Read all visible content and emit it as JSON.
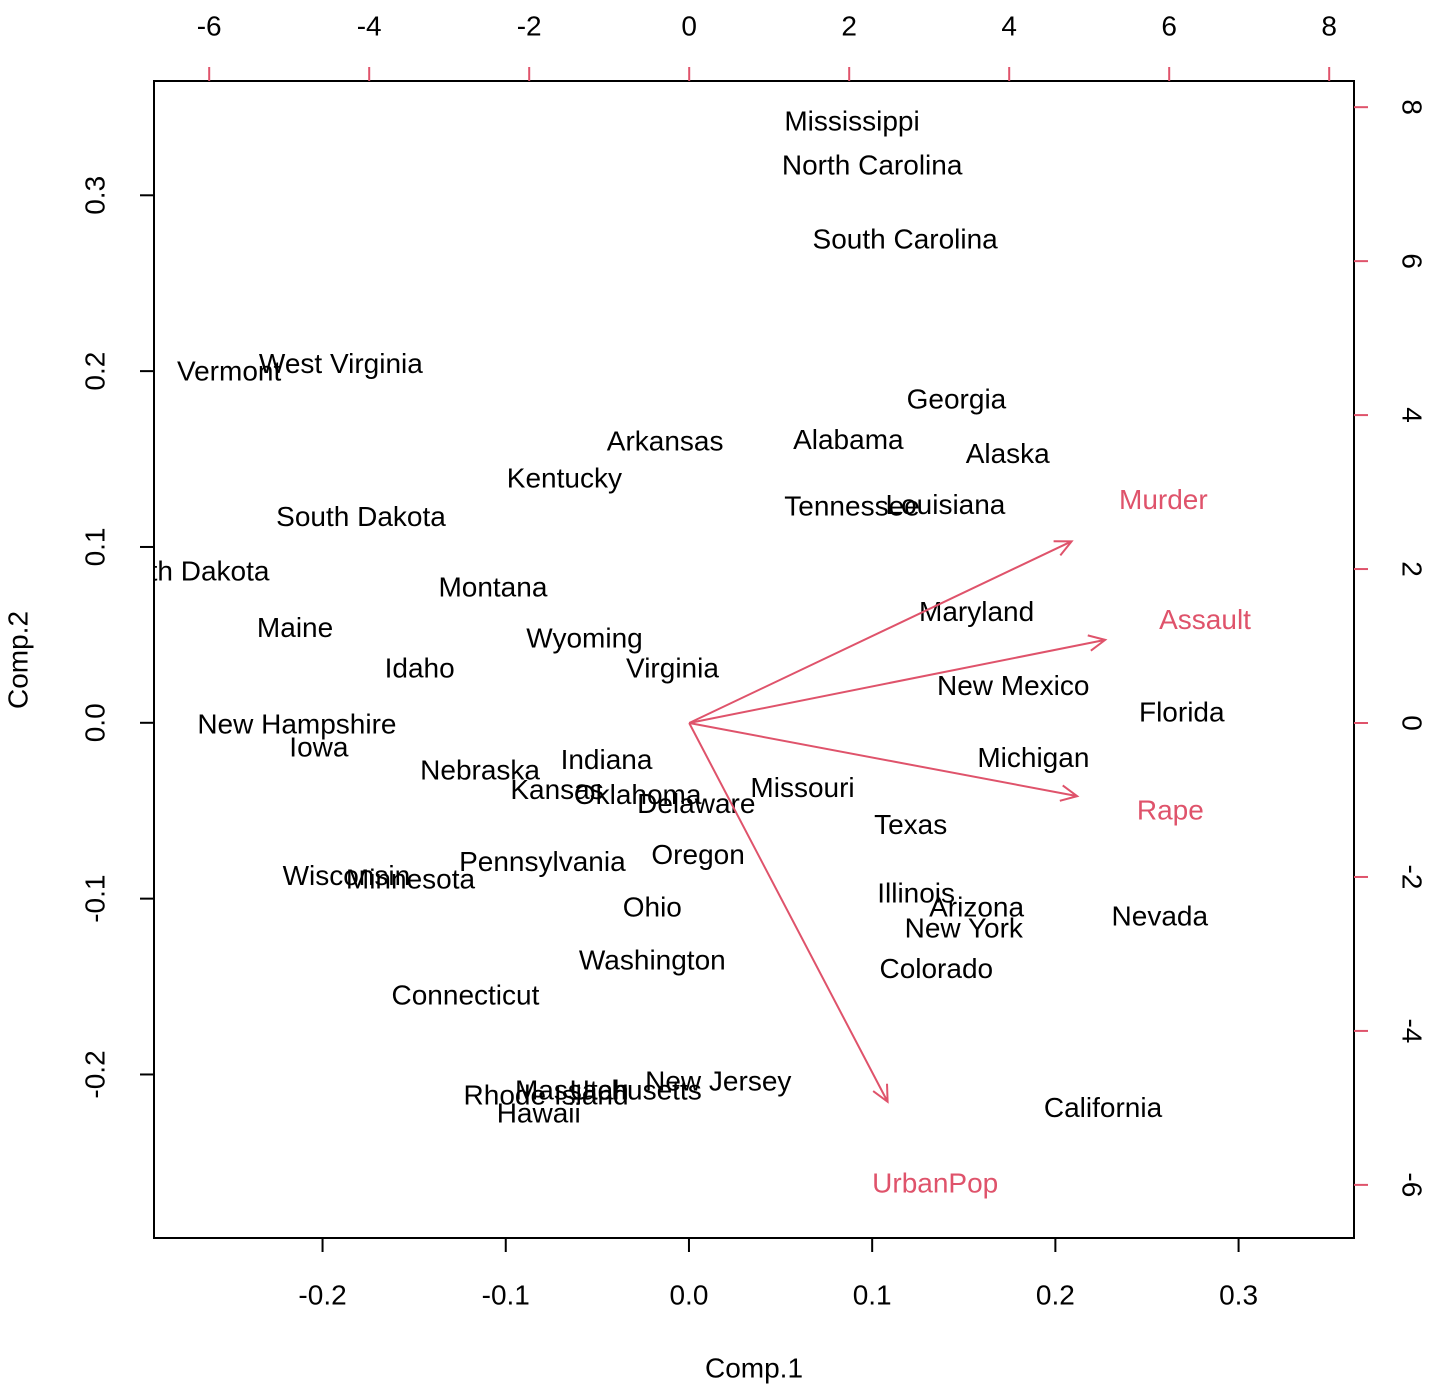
{
  "chart_data": {
    "type": "biplot",
    "x_label": "Comp.1",
    "y_label": "Comp.2",
    "xlim": [
      -0.292,
      0.363
    ],
    "ylim": [
      -0.293,
      0.365
    ],
    "xticks": [
      -0.2,
      -0.1,
      {
        "value": 0,
        "label": "0.0"
      },
      0.1,
      0.2,
      0.3
    ],
    "yticks": [
      -0.2,
      -0.1,
      {
        "value": 0,
        "label": "0.0"
      },
      0.1,
      0.2,
      0.3
    ],
    "x2lim": [
      -6.69,
      8.31
    ],
    "y2lim": [
      -6.69,
      8.34
    ],
    "x2ticks": [
      -6,
      -4,
      -2,
      0,
      2,
      4,
      6,
      8
    ],
    "y2ticks": [
      -6,
      -4,
      -2,
      0,
      2,
      4,
      6,
      8
    ],
    "point_color": "#000000",
    "arrow_color": "#DF536B",
    "points": [
      {
        "label": "Mississippi",
        "x": 0.089,
        "y": 0.341
      },
      {
        "label": "North Carolina",
        "x": 0.1,
        "y": 0.316
      },
      {
        "label": "South Carolina",
        "x": 0.118,
        "y": 0.274
      },
      {
        "label": "Vermont",
        "x": -0.251,
        "y": 0.199
      },
      {
        "label": "West Virginia",
        "x": -0.19,
        "y": 0.203
      },
      {
        "label": "Georgia",
        "x": 0.146,
        "y": 0.183
      },
      {
        "label": "Arkansas",
        "x": -0.013,
        "y": 0.159
      },
      {
        "label": "Alabama",
        "x": 0.087,
        "y": 0.16
      },
      {
        "label": "Alaska",
        "x": 0.174,
        "y": 0.152
      },
      {
        "label": "Kentucky",
        "x": -0.068,
        "y": 0.138
      },
      {
        "label": "Tennessee",
        "x": 0.089,
        "y": 0.122
      },
      {
        "label": "Louisiana",
        "x": 0.14,
        "y": 0.123
      },
      {
        "label": "South Dakota",
        "x": -0.179,
        "y": 0.116
      },
      {
        "label": "North Dakota",
        "x": -0.274,
        "y": 0.085
      },
      {
        "label": "Montana",
        "x": -0.107,
        "y": 0.076
      },
      {
        "label": "Maryland",
        "x": 0.157,
        "y": 0.062
      },
      {
        "label": "Maine",
        "x": -0.215,
        "y": 0.053
      },
      {
        "label": "Wyoming",
        "x": -0.057,
        "y": 0.047
      },
      {
        "label": "Idaho",
        "x": -0.147,
        "y": 0.03
      },
      {
        "label": "Virginia",
        "x": -0.009,
        "y": 0.03
      },
      {
        "label": "New Mexico",
        "x": 0.177,
        "y": 0.02
      },
      {
        "label": "Florida",
        "x": 0.269,
        "y": 0.005
      },
      {
        "label": "New Hampshire",
        "x": -0.214,
        "y": -0.002
      },
      {
        "label": "Iowa",
        "x": -0.202,
        "y": -0.015
      },
      {
        "label": "Michigan",
        "x": 0.188,
        "y": -0.021
      },
      {
        "label": "Indiana",
        "x": -0.045,
        "y": -0.022
      },
      {
        "label": "Nebraska",
        "x": -0.114,
        "y": -0.028
      },
      {
        "label": "Missouri",
        "x": 0.062,
        "y": -0.038
      },
      {
        "label": "Kansas",
        "x": -0.072,
        "y": -0.039
      },
      {
        "label": "Oklahoma",
        "x": -0.028,
        "y": -0.042
      },
      {
        "label": "Delaware",
        "x": 0.004,
        "y": -0.047
      },
      {
        "label": "Texas",
        "x": 0.121,
        "y": -0.059
      },
      {
        "label": "Oregon",
        "x": 0.005,
        "y": -0.076
      },
      {
        "label": "Pennsylvania",
        "x": -0.08,
        "y": -0.08
      },
      {
        "label": "Wisconsin",
        "x": -0.187,
        "y": -0.088
      },
      {
        "label": "Minnesota",
        "x": -0.152,
        "y": -0.09
      },
      {
        "label": "Illinois",
        "x": 0.124,
        "y": -0.098
      },
      {
        "label": "Arizona",
        "x": 0.157,
        "y": -0.106
      },
      {
        "label": "Ohio",
        "x": -0.02,
        "y": -0.106
      },
      {
        "label": "Nevada",
        "x": 0.257,
        "y": -0.111
      },
      {
        "label": "New York",
        "x": 0.15,
        "y": -0.118
      },
      {
        "label": "Washington",
        "x": -0.02,
        "y": -0.136
      },
      {
        "label": "Colorado",
        "x": 0.135,
        "y": -0.141
      },
      {
        "label": "Connecticut",
        "x": -0.122,
        "y": -0.156
      },
      {
        "label": "New Jersey",
        "x": 0.016,
        "y": -0.205
      },
      {
        "label": "Massachusetts",
        "x": -0.044,
        "y": -0.21
      },
      {
        "label": "Utah",
        "x": -0.049,
        "y": -0.21
      },
      {
        "label": "Rhode Island",
        "x": -0.078,
        "y": -0.213
      },
      {
        "label": "Hawaii",
        "x": -0.082,
        "y": -0.223
      },
      {
        "label": "California",
        "x": 0.226,
        "y": -0.22
      }
    ],
    "arrows": [
      {
        "name": "Murder",
        "x": 4.78,
        "y": 2.36
      },
      {
        "name": "Assault",
        "x": 5.2,
        "y": 1.08
      },
      {
        "name": "Rape",
        "x": 4.85,
        "y": -0.95
      },
      {
        "name": "UrbanPop",
        "x": 2.48,
        "y": -4.92
      }
    ]
  }
}
